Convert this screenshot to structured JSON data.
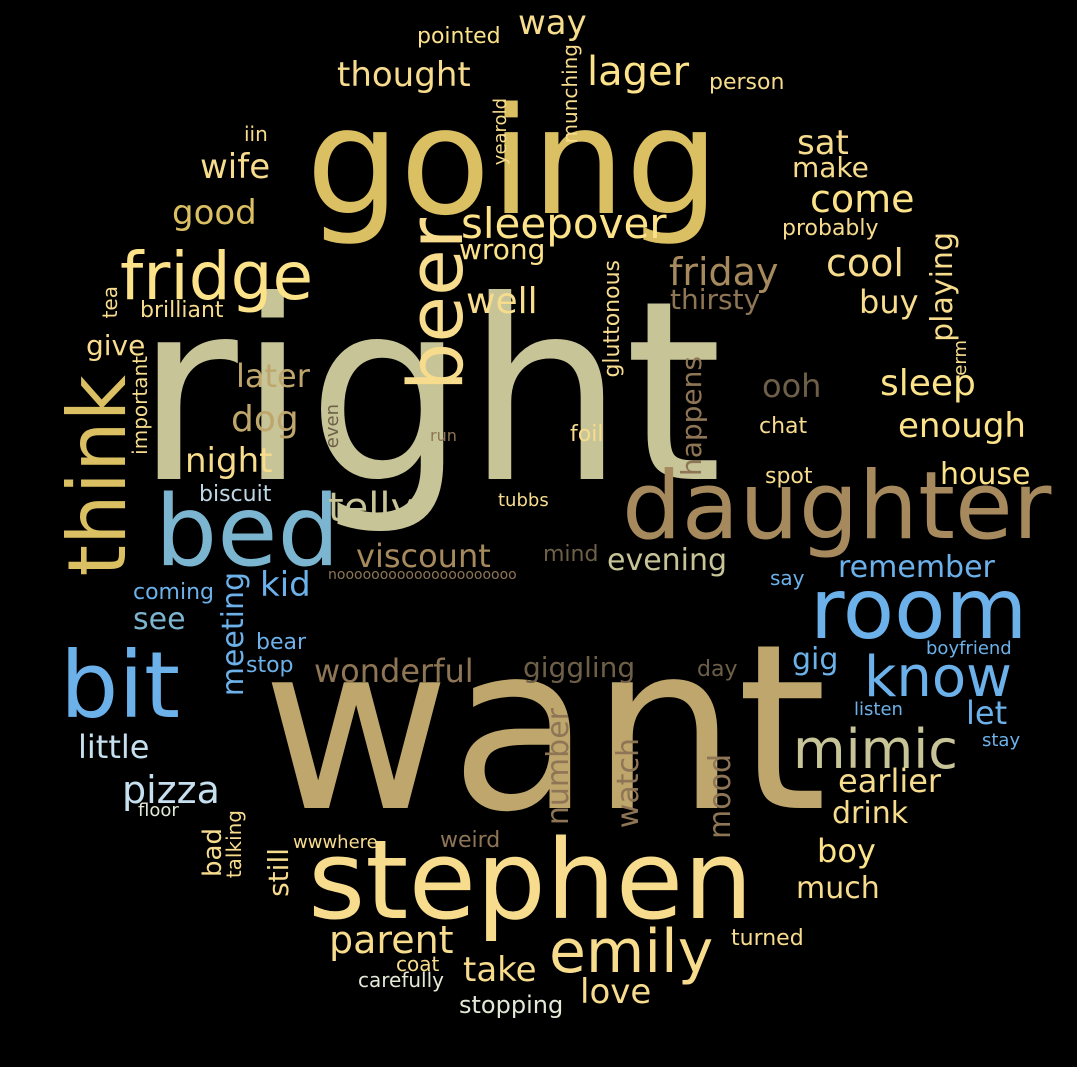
{
  "colors": {
    "background": "#000000",
    "c1": "#c7c497",
    "c2": "#bea66c",
    "c3": "#dbbf63",
    "c4": "#f7dc8e",
    "c5": "#a68a5e",
    "c6": "#7bb5d0",
    "c7": "#6cb1ea",
    "c8": "#5ba4e6",
    "c9": "#fce38a",
    "c10": "#e3e9d6",
    "c11": "#8e7555",
    "c12": "#6e6048"
  },
  "words": [
    "right",
    "want",
    "going",
    "stephen",
    "daughter",
    "room",
    "bed",
    "bit",
    "think",
    "beer",
    "fridge",
    "emily",
    "know",
    "mimic",
    "sleepover",
    "telly",
    "viscount",
    "lager",
    "thought",
    "way",
    "come",
    "sat",
    "make",
    "wife",
    "good",
    "friday",
    "cool",
    "well",
    "wrong",
    "sleep",
    "enough",
    "later",
    "dog",
    "night",
    "house",
    "ooh",
    "buy",
    "thirsty",
    "probably",
    "playing",
    "wonderful",
    "giggling",
    "remember",
    "evening",
    "kid",
    "see",
    "little",
    "pizza",
    "meeting",
    "let",
    "earlier",
    "drink",
    "boy",
    "much",
    "parent",
    "take",
    "love",
    "turned",
    "coat",
    "carefully",
    "stopping",
    "number",
    "watch",
    "mood",
    "gig",
    "give",
    "brilliant",
    "tea",
    "important",
    "pointed",
    "person",
    "iin",
    "yearold",
    "munching",
    "gluttonous",
    "happens",
    "erm",
    "chat",
    "spot",
    "foil",
    "run",
    "even",
    "biscuit",
    "tubbs",
    "mind",
    "nooooooooooooooooooooo",
    "say",
    "coming",
    "bear",
    "stop",
    "boyfriend",
    "listen",
    "stay",
    "floor",
    "bad",
    "talking",
    "still",
    "wwwhere",
    "weird",
    "day"
  ]
}
